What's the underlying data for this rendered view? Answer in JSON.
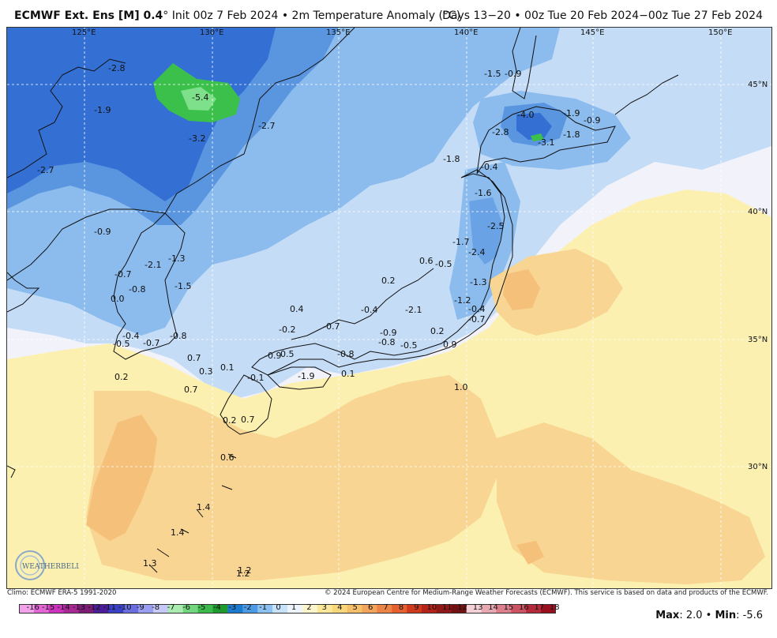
{
  "header": {
    "title_main": "ECMWF Ext. Ens [M] 0.4",
    "title_rest": "° Init 00z 7 Feb 2024 • 2m Temperature Anomaly (°C)",
    "valid_range": "Days 13−20 • 00z Tue 20 Feb 2024−00z Tue 27 Feb 2024"
  },
  "map": {
    "lon_labels": [
      "125°E",
      "130°E",
      "135°E",
      "140°E",
      "145°E",
      "150°E"
    ],
    "lat_labels": [
      "45°N",
      "40°N",
      "35°N",
      "30°N"
    ],
    "values": [
      "-2.8",
      "-1.9",
      "-5.4",
      "-3.2",
      "-2.7",
      "-2.7",
      "-0.9",
      "-2.1",
      "-1.3",
      "-1.5",
      "-0.7",
      "-0.8",
      "0.0",
      "-0.4",
      "-0.5",
      "-0.7",
      "-0.8",
      "0.2",
      "0.7",
      "0.3",
      "0.1",
      "0.7",
      "0.2",
      "0.7",
      "0.6",
      "1.4",
      "1.4",
      "1.3",
      "1.2",
      "1.2",
      "0.4",
      "-0.2",
      "-0.7",
      "-0.9",
      "0.5",
      "-0.8",
      "-1.9",
      "0.1",
      "-0.1",
      "-0.4",
      "-0.9",
      "-0.8",
      "-0.5",
      "0.2",
      "0.9",
      "1.0",
      "-2.1",
      "0.2",
      "0.6",
      "-0.5",
      "-1.7",
      "-2.4",
      "-1.3",
      "-1.2",
      "-0.4",
      "-0.7",
      "-1.6",
      "-2.5",
      "-1.8",
      "-0.4",
      "-1.5",
      "-0.9",
      "-4.0",
      "-2.8",
      "-3.1",
      "-1.9",
      "-0.9",
      "-1.8"
    ]
  },
  "footer": {
    "climo": "Climo: ECMWF ERA-5 1991-2020",
    "copyright": "© 2024 European Centre for Medium-Range Weather Forecasts (ECMWF). This service is based on data and products of the ECMWF.",
    "logo_text": "WEATHERBELL",
    "max_label": "Max",
    "max_value": "2.0",
    "min_label": "Min",
    "min_value": "-5.6"
  },
  "colorbar": {
    "ticks": [
      "-16",
      "-15",
      "-14",
      "-13",
      "-12",
      "-11",
      "-10",
      "-9",
      "-8",
      "-7",
      "-6",
      "-5",
      "-4",
      "-3",
      "-2",
      "-1",
      "0",
      "1",
      "2",
      "3",
      "4",
      "5",
      "6",
      "7",
      "8",
      "9",
      "10",
      "11",
      "12",
      "13",
      "14",
      "15",
      "16",
      "17",
      "18"
    ],
    "colors": [
      "#f2a2e8",
      "#e267d4",
      "#cc33bb",
      "#a82896",
      "#7c1c74",
      "#4a1d99",
      "#3a3fc4",
      "#6a6ee0",
      "#9a9ef0",
      "#c6c8f6",
      "#a8ecb0",
      "#72d67e",
      "#3cba4c",
      "#1e9a2e",
      "#1a7ad0",
      "#4a9ae6",
      "#8cc2f2",
      "#c8e2fa",
      "#eef4fc",
      "#fdf6cc",
      "#fbe79a",
      "#f8d67a",
      "#f5bf6a",
      "#f1a45a",
      "#ec8446",
      "#e4602e",
      "#d03a1c",
      "#b4221a",
      "#901818",
      "#701212",
      "#f2d0d6",
      "#e8a8b2",
      "#dc7e8c",
      "#cc5462",
      "#b42a3a",
      "#98101e"
    ]
  }
}
